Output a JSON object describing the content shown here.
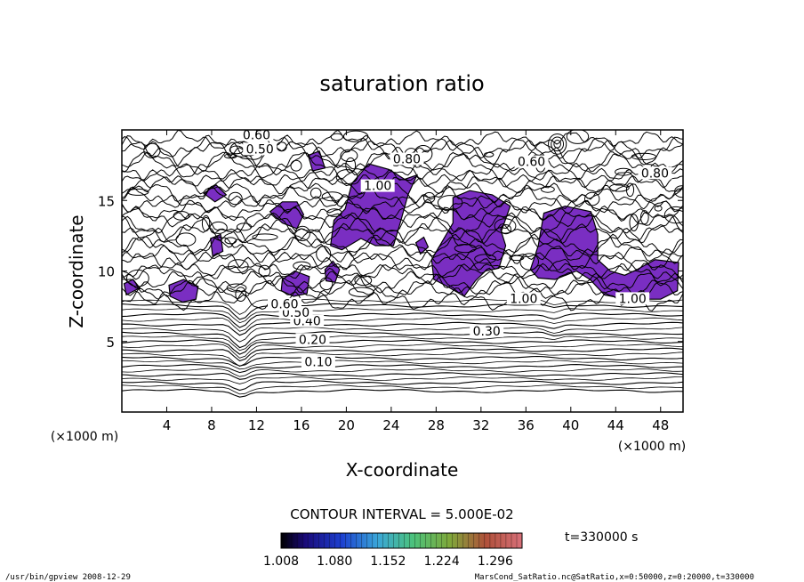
{
  "chart_data": {
    "type": "contour",
    "title": "saturation ratio",
    "xlabel": "X-coordinate",
    "ylabel": "Z-coordinate",
    "x_unit_left": "(×1000 m)",
    "x_unit_right": "(×1000 m)",
    "xlim": [
      0,
      50
    ],
    "ylim": [
      0,
      20
    ],
    "x_ticks": [
      4,
      8,
      12,
      16,
      20,
      24,
      28,
      32,
      36,
      40,
      44,
      48
    ],
    "y_ticks": [
      5,
      10,
      15
    ],
    "contour_interval_text": "CONTOUR INTERVAL = 5.000E-02",
    "time_text": "t=330000 s",
    "colorbar_labels": [
      "1.008",
      "1.080",
      "1.152",
      "1.224",
      "1.296"
    ],
    "colorbar_range": [
      1.008,
      1.332
    ],
    "fill_color": "#7a2ec2",
    "contour_labels": [
      {
        "text": "0.10",
        "x": 17.5,
        "z": 3.3
      },
      {
        "text": "0.20",
        "x": 17.0,
        "z": 4.9
      },
      {
        "text": "0.30",
        "x": 32.5,
        "z": 5.5
      },
      {
        "text": "0.40",
        "x": 16.5,
        "z": 6.2
      },
      {
        "text": "0.50",
        "x": 15.5,
        "z": 6.8
      },
      {
        "text": "0.60",
        "x": 14.5,
        "z": 7.4
      },
      {
        "text": "1.00",
        "x": 35.8,
        "z": 7.8
      },
      {
        "text": "1.00",
        "x": 45.5,
        "z": 7.8
      },
      {
        "text": "0.60",
        "x": 12.0,
        "z": 19.4
      },
      {
        "text": "0.50",
        "x": 12.3,
        "z": 18.4
      },
      {
        "text": "0.80",
        "x": 25.4,
        "z": 17.7
      },
      {
        "text": "0.80",
        "x": 47.5,
        "z": 16.7
      },
      {
        "text": "0.60",
        "x": 36.5,
        "z": 17.5
      },
      {
        "text": "1.00",
        "x": 22.8,
        "z": 15.8
      }
    ],
    "filled_regions_xz": [
      [
        [
          20.5,
          16.2
        ],
        [
          22,
          17.6
        ],
        [
          23.8,
          17.2
        ],
        [
          25.2,
          16.5
        ],
        [
          26.3,
          16.8
        ],
        [
          25.5,
          15.4
        ],
        [
          24.8,
          13.4
        ],
        [
          24.2,
          11.8
        ],
        [
          22.6,
          11.8
        ],
        [
          21.3,
          12.3
        ],
        [
          19.6,
          11.5
        ],
        [
          18.6,
          11.8
        ],
        [
          18.9,
          13.6
        ],
        [
          19.9,
          14.4
        ]
      ],
      [
        [
          29.5,
          15.2
        ],
        [
          31,
          15.7
        ],
        [
          33,
          15.4
        ],
        [
          34.6,
          14.6
        ],
        [
          33.8,
          12.8
        ],
        [
          34.2,
          11.8
        ],
        [
          33.6,
          10.2
        ],
        [
          32.4,
          10.0
        ],
        [
          31.5,
          9.3
        ],
        [
          30.5,
          8.2
        ],
        [
          29,
          8.9
        ],
        [
          27.8,
          9.4
        ],
        [
          27.6,
          10.8
        ],
        [
          28.4,
          11.9
        ],
        [
          29.5,
          13.4
        ]
      ],
      [
        [
          37.6,
          14.1
        ],
        [
          39.5,
          14.6
        ],
        [
          41.8,
          14.2
        ],
        [
          42.4,
          12.6
        ],
        [
          42.4,
          10.8
        ],
        [
          43.5,
          10.0
        ],
        [
          44.8,
          9.7
        ],
        [
          45.9,
          10.1
        ],
        [
          47.5,
          10.8
        ],
        [
          49.6,
          10.6
        ],
        [
          49.5,
          8.6
        ],
        [
          48,
          8.0
        ],
        [
          45,
          8.0
        ],
        [
          43,
          8.3
        ],
        [
          41.7,
          9.4
        ],
        [
          40.5,
          10.0
        ],
        [
          38.6,
          9.4
        ],
        [
          37.1,
          9.5
        ],
        [
          36.4,
          10.1
        ],
        [
          37.1,
          11.8
        ]
      ],
      [
        [
          13.2,
          14.2
        ],
        [
          14.3,
          14.9
        ],
        [
          15.6,
          14.9
        ],
        [
          16.2,
          14.0
        ],
        [
          15.6,
          13.0
        ],
        [
          14.3,
          13.4
        ]
      ],
      [
        [
          16.6,
          18.2
        ],
        [
          17.6,
          18.5
        ],
        [
          18.1,
          17.3
        ],
        [
          17.0,
          17.1
        ]
      ],
      [
        [
          7.3,
          15.5
        ],
        [
          8.4,
          16.1
        ],
        [
          9.3,
          15.4
        ],
        [
          8.3,
          14.9
        ]
      ],
      [
        [
          4.2,
          9.0
        ],
        [
          5.5,
          9.4
        ],
        [
          6.8,
          8.9
        ],
        [
          6.6,
          8.0
        ],
        [
          5.4,
          7.8
        ],
        [
          4.3,
          8.2
        ]
      ],
      [
        [
          14.3,
          9.4
        ],
        [
          15.4,
          10.0
        ],
        [
          16.7,
          9.6
        ],
        [
          16.5,
          8.4
        ],
        [
          15.3,
          8.2
        ],
        [
          14.2,
          8.6
        ]
      ],
      [
        [
          18.1,
          10.1
        ],
        [
          18.8,
          10.7
        ],
        [
          19.4,
          10.1
        ],
        [
          19.0,
          9.2
        ],
        [
          18.2,
          9.3
        ]
      ],
      [
        [
          0.2,
          9.1
        ],
        [
          1.0,
          9.4
        ],
        [
          1.6,
          8.8
        ],
        [
          0.4,
          8.3
        ]
      ],
      [
        [
          7.9,
          12.3
        ],
        [
          8.8,
          12.6
        ],
        [
          9.0,
          11.4
        ],
        [
          8.1,
          11.0
        ]
      ],
      [
        [
          26.2,
          12.0
        ],
        [
          26.9,
          12.4
        ],
        [
          27.3,
          11.7
        ],
        [
          26.6,
          11.2
        ]
      ]
    ]
  },
  "footer": {
    "left": "/usr/bin/gpview  2008-12-29",
    "right": "MarsCond_SatRatio.nc@SatRatio,x=0:50000,z=0:20000,t=330000"
  }
}
